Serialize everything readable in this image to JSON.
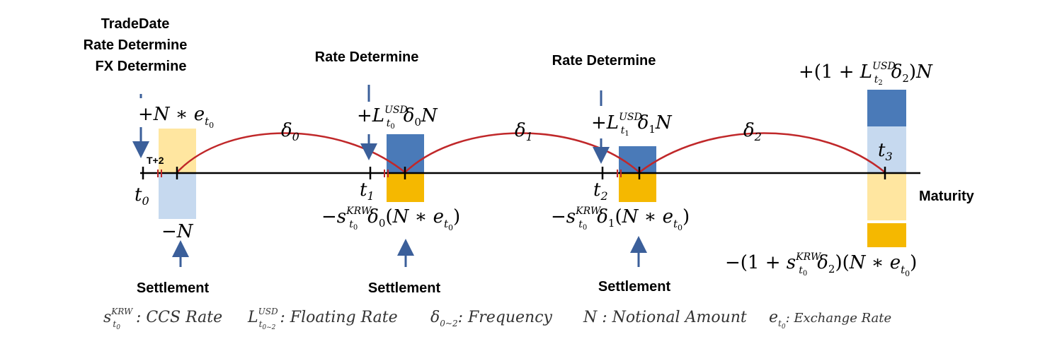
{
  "labels": {
    "trade_date": "TradeDate",
    "rate_determine": "Rate Determine",
    "fx_determine": "FX Determine",
    "settlement": "Settlement",
    "maturity": "Maturity",
    "t_plus_2": "T+2"
  },
  "timeline": {
    "points": [
      "t0",
      "t1",
      "t2",
      "t3"
    ],
    "periods": [
      "δ0",
      "δ1",
      "δ2"
    ]
  },
  "flows": {
    "initial_receive": "+N * e_t0",
    "initial_pay": "−N",
    "t1_receive": "+L_t0^USD δ0 N",
    "t1_pay": "−s_t0^KRW δ0 (N * e_t0)",
    "t2_receive": "+L_t1^USD δ1 N",
    "t2_pay": "−s_t0^KRW δ1 (N * e_t0)",
    "maturity_receive": "+(1 + L_t2^USD δ2)N",
    "maturity_pay": "−(1 + s_t0^KRW δ2)(N * e_t0)"
  },
  "legend": {
    "ccs_rate": ": CCS Rate",
    "floating_rate": ": Floating Rate",
    "frequency": ": Frequency",
    "notional": "N : Notional Amount",
    "exchange_rate": ": Exchange Rate"
  },
  "colors": {
    "usd_dark": "#4a7ab8",
    "usd_light": "#c6d9ef",
    "krw_dark": "#f5b800",
    "krw_light": "#ffe6a0",
    "arrow": "#3b5f9a",
    "curve": "#c0282a",
    "axis": "#000000"
  }
}
